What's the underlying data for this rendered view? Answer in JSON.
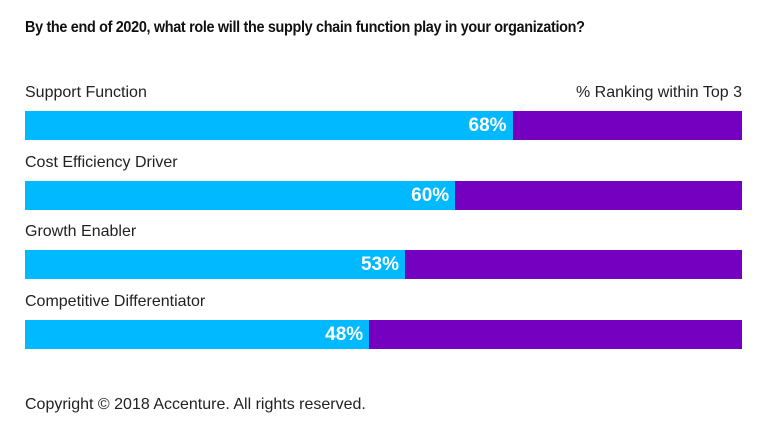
{
  "chart_data": {
    "type": "bar",
    "orientation": "horizontal",
    "stacked_to_100": true,
    "title": "By the end of 2020, what role will the supply chain function play in your organization?",
    "legend": "% Ranking within Top 3",
    "categories": [
      "Support Function",
      "Cost Efficiency Driver",
      "Growth Enabler",
      "Competitive Differentiator"
    ],
    "values": [
      68,
      60,
      53,
      48
    ],
    "value_labels": [
      "68%",
      "60%",
      "53%",
      "48%"
    ],
    "unit": "%",
    "xlim": [
      0,
      100
    ],
    "colors": {
      "value": "#00B9FF",
      "remainder": "#7500C0"
    }
  },
  "footer": {
    "copyright": "Copyright © 2018 Accenture. All rights reserved."
  }
}
